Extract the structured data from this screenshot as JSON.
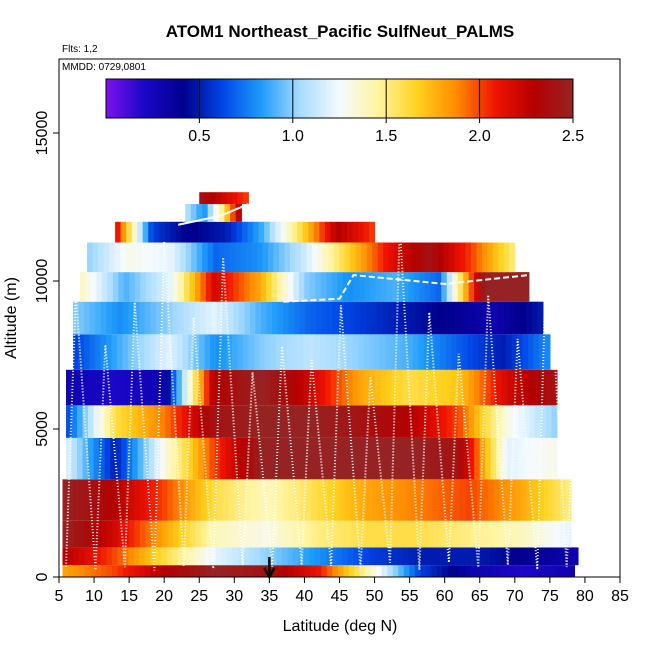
{
  "chart_data": {
    "type": "heatmap",
    "title": "ATOM1 Northeast_Pacific SulfNeut_PALMS",
    "subtitle": "Flts: 1,2",
    "annotation": "MMDD: 0729,0801",
    "xlabel": "Latitude (deg N)",
    "ylabel": "Altitude (m)",
    "xlim": [
      5,
      85
    ],
    "ylim": [
      0,
      17500
    ],
    "x_ticks": [
      "5",
      "10",
      "15",
      "20",
      "25",
      "30",
      "35",
      "40",
      "45",
      "50",
      "55",
      "60",
      "65",
      "70",
      "75",
      "80",
      "85"
    ],
    "y_ticks": [
      "0",
      "5000",
      "10000",
      "15000"
    ],
    "colorbar": {
      "range": [
        0,
        2.5
      ],
      "ticks": [
        "0.5",
        "1.0",
        "1.5",
        "2.0",
        "2.5"
      ],
      "colors": [
        "#7a12ee",
        "#1a06c8",
        "#00008c",
        "#0046e6",
        "#1e9cfa",
        "#a8dcff",
        "#f5faff",
        "#fff5a0",
        "#ffd21e",
        "#ff8c00",
        "#f01400",
        "#b40000",
        "#962323"
      ]
    },
    "marker": {
      "type": "arrow",
      "latitude": 35
    },
    "bands": [
      {
        "lat": [
          5.5,
          78.5
        ],
        "alt": [
          0,
          400
        ],
        "values": [
          1.8,
          2.0,
          2.3,
          2.5,
          2.4,
          2.1,
          1.4,
          0.6,
          0.3,
          0.2,
          0.3
        ]
      },
      {
        "lat": [
          5.5,
          79
        ],
        "alt": [
          400,
          1000
        ],
        "values": [
          2.3,
          2.0,
          1.6,
          1.2,
          1.0,
          0.8,
          0.6,
          0.5,
          0.5,
          0.4,
          0.3
        ]
      },
      {
        "lat": [
          5.5,
          78
        ],
        "alt": [
          1000,
          1900
        ],
        "values": [
          2.5,
          2.2,
          1.8,
          1.4,
          1.3,
          1.5,
          1.6,
          1.6,
          1.5,
          1.4,
          1.2
        ]
      },
      {
        "lat": [
          5.5,
          78
        ],
        "alt": [
          1900,
          3300
        ],
        "values": [
          2.5,
          2.3,
          2.0,
          1.6,
          1.4,
          1.6,
          1.8,
          1.9,
          2.0,
          1.8,
          1.5
        ]
      },
      {
        "lat": [
          6,
          76
        ],
        "alt": [
          3300,
          4700
        ],
        "values": [
          1.2,
          0.5,
          1.3,
          2.0,
          2.5,
          2.5,
          2.5,
          2.5,
          2.4,
          1.2,
          1.3
        ]
      },
      {
        "lat": [
          6,
          76
        ],
        "alt": [
          4700,
          5800
        ],
        "values": [
          0.6,
          1.6,
          1.9,
          2.4,
          2.5,
          2.5,
          2.4,
          2.3,
          2.0,
          1.3,
          1.0
        ]
      },
      {
        "lat": [
          6,
          76
        ],
        "alt": [
          5800,
          7000
        ],
        "values": [
          0.3,
          0.2,
          0.3,
          2.3,
          2.5,
          2.2,
          1.8,
          1.6,
          1.7,
          2.2,
          2.4
        ]
      },
      {
        "lat": [
          7,
          75
        ],
        "alt": [
          7000,
          8200
        ],
        "values": [
          0.6,
          0.9,
          1.2,
          0.8,
          1.0,
          1.1,
          1.0,
          0.9,
          0.7,
          0.5,
          0.8
        ]
      },
      {
        "lat": [
          7,
          74
        ],
        "alt": [
          8200,
          9300
        ],
        "values": [
          1.0,
          0.8,
          1.0,
          1.2,
          0.9,
          0.7,
          0.6,
          0.5,
          0.4,
          0.3,
          0.5
        ]
      },
      {
        "lat": [
          8,
          72
        ],
        "alt": [
          9300,
          10300
        ],
        "values": [
          1.4,
          0.9,
          1.2,
          2.2,
          1.8,
          1.0,
          0.8,
          0.9,
          0.7,
          2.5,
          2.5
        ]
      },
      {
        "lat": [
          9,
          70
        ],
        "alt": [
          10300,
          11300
        ],
        "values": [
          1.0,
          1.3,
          1.2,
          0.7,
          0.8,
          1.1,
          1.6,
          2.1,
          2.4,
          2.0,
          1.5
        ]
      },
      {
        "lat": [
          13,
          50
        ],
        "alt": [
          11300,
          12000
        ],
        "values": [
          2.2,
          0.6,
          0.4,
          0.5,
          0.9,
          1.6,
          2.3,
          2.0
        ]
      },
      {
        "lat": [
          23,
          31
        ],
        "alt": [
          12000,
          12600
        ],
        "values": [
          1.1,
          0.8,
          1.5,
          2.4
        ]
      },
      {
        "lat": [
          25,
          32
        ],
        "alt": [
          12600,
          13000
        ],
        "values": [
          2.4,
          2.2,
          2.0
        ]
      }
    ]
  }
}
